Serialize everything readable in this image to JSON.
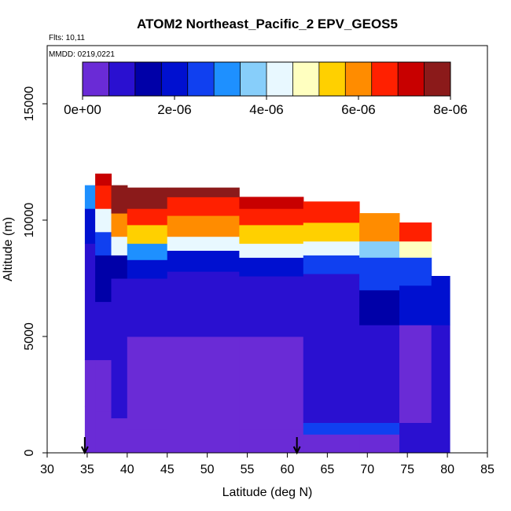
{
  "chart_data": {
    "type": "heatmap",
    "title": "ATOM2 Northeast_Pacific_2 EPV_GEOS5",
    "flights_label": "Flts: 10,11",
    "date_label": "MMDD: 0219,0221",
    "xlabel": "Latitude (deg N)",
    "ylabel": "Altitude (m)",
    "xlim": [
      30,
      85
    ],
    "ylim": [
      0,
      17500
    ],
    "x_ticks": [
      30,
      35,
      40,
      45,
      50,
      55,
      60,
      65,
      70,
      75,
      80,
      85
    ],
    "x_tick_labels": [
      "30",
      "35",
      "40",
      "45",
      "50",
      "55",
      "60",
      "65",
      "70",
      "75",
      "80",
      "85"
    ],
    "y_ticks": [
      0,
      5000,
      10000,
      15000
    ],
    "y_tick_labels": [
      "0",
      "5000",
      "10000",
      "15000"
    ],
    "colorbar": {
      "min": 0,
      "max": 8e-06,
      "ticks": [
        0,
        2e-06,
        4e-06,
        6e-06,
        8e-06
      ],
      "tick_labels": [
        "0e+00",
        "2e-06",
        "4e-06",
        "6e-06",
        "8e-06"
      ],
      "colors": [
        "#6a2bd6",
        "#2a10d0",
        "#0000a8",
        "#0010d0",
        "#1040f0",
        "#1e90ff",
        "#87cefa",
        "#e8f8ff",
        "#ffffc0",
        "#ffd000",
        "#ff8c00",
        "#ff2000",
        "#c80000",
        "#8b1a1a"
      ]
    },
    "markers": [
      {
        "label": "arrow",
        "x": 34.7
      },
      {
        "label": "arrow",
        "x": 61.2
      }
    ],
    "columns": [
      {
        "x0": 34.7,
        "x1": 36.0,
        "ztop": 11500,
        "layers": [
          [
            0,
            2000,
            0.3
          ],
          [
            2000,
            4000,
            0.45
          ],
          [
            4000,
            7000,
            0.6
          ],
          [
            7000,
            9000,
            0.9
          ],
          [
            9000,
            10500,
            2.0
          ],
          [
            10500,
            11500,
            3.0
          ]
        ]
      },
      {
        "x0": 36.0,
        "x1": 38.0,
        "ztop": 12000,
        "layers": [
          [
            0,
            1800,
            0.4
          ],
          [
            1800,
            4000,
            0.5
          ],
          [
            4000,
            6500,
            0.7
          ],
          [
            6500,
            8500,
            1.3
          ],
          [
            8500,
            9500,
            2.6
          ],
          [
            9500,
            10500,
            4.5
          ],
          [
            10500,
            11500,
            6.5
          ],
          [
            11500,
            12000,
            7.2
          ]
        ]
      },
      {
        "x0": 38.0,
        "x1": 40.0,
        "ztop": 11500,
        "layers": [
          [
            0,
            1500,
            0.4
          ],
          [
            1500,
            4500,
            0.6
          ],
          [
            4500,
            7500,
            0.8
          ],
          [
            7500,
            8500,
            1.6
          ],
          [
            8500,
            9300,
            4.5
          ],
          [
            9300,
            10300,
            6.0
          ],
          [
            10300,
            11500,
            7.5
          ]
        ]
      },
      {
        "x0": 40.0,
        "x1": 45.0,
        "ztop": 11400,
        "layers": [
          [
            0,
            1000,
            0.3
          ],
          [
            1000,
            5000,
            0.5
          ],
          [
            5000,
            7500,
            0.9
          ],
          [
            7500,
            8300,
            2.2
          ],
          [
            8300,
            9000,
            3.2
          ],
          [
            9000,
            9800,
            5.3
          ],
          [
            9800,
            10500,
            6.5
          ],
          [
            10500,
            11400,
            7.6
          ]
        ]
      },
      {
        "x0": 45.0,
        "x1": 54.0,
        "ztop": 11400,
        "layers": [
          [
            0,
            1200,
            0.3
          ],
          [
            1200,
            5000,
            0.5
          ],
          [
            5000,
            7800,
            0.8
          ],
          [
            7800,
            8700,
            2.0
          ],
          [
            8700,
            9300,
            4.2
          ],
          [
            9300,
            10200,
            5.8
          ],
          [
            10200,
            11000,
            6.8
          ],
          [
            11000,
            11400,
            7.8
          ]
        ]
      },
      {
        "x0": 54.0,
        "x1": 62.0,
        "ztop": 11000,
        "layers": [
          [
            0,
            1000,
            0.5
          ],
          [
            1000,
            5000,
            0.55
          ],
          [
            5000,
            7600,
            0.8
          ],
          [
            7600,
            8400,
            2.2
          ],
          [
            8400,
            9000,
            4.0
          ],
          [
            9000,
            9800,
            5.6
          ],
          [
            9800,
            10500,
            6.6
          ],
          [
            10500,
            11000,
            7.2
          ]
        ]
      },
      {
        "x0": 62.0,
        "x1": 69.0,
        "ztop": 10800,
        "layers": [
          [
            0,
            800,
            0.5
          ],
          [
            800,
            1300,
            2.6
          ],
          [
            1300,
            5000,
            0.6
          ],
          [
            5000,
            7700,
            0.9
          ],
          [
            7700,
            8500,
            2.4
          ],
          [
            8500,
            9100,
            4.0
          ],
          [
            9100,
            9900,
            5.3
          ],
          [
            9900,
            10800,
            6.4
          ]
        ]
      },
      {
        "x0": 69.0,
        "x1": 74.0,
        "ztop": 10300,
        "layers": [
          [
            0,
            800,
            0.5
          ],
          [
            800,
            1300,
            2.3
          ],
          [
            1300,
            5500,
            0.6
          ],
          [
            5500,
            7000,
            1.5
          ],
          [
            7000,
            8400,
            2.5
          ],
          [
            8400,
            9100,
            3.5
          ],
          [
            9100,
            10300,
            6.0
          ]
        ]
      },
      {
        "x0": 74.0,
        "x1": 78.0,
        "ztop": 9900,
        "layers": [
          [
            0,
            1300,
            0.6
          ],
          [
            1300,
            5500,
            0.55
          ],
          [
            5500,
            7200,
            1.9
          ],
          [
            7200,
            8400,
            2.8
          ],
          [
            8400,
            9100,
            4.8
          ],
          [
            9100,
            9900,
            6.5
          ]
        ]
      },
      {
        "x0": 78.0,
        "x1": 80.3,
        "ztop": 7600,
        "layers": [
          [
            0,
            5500,
            0.6
          ],
          [
            5500,
            7600,
            2.0
          ]
        ]
      }
    ]
  }
}
